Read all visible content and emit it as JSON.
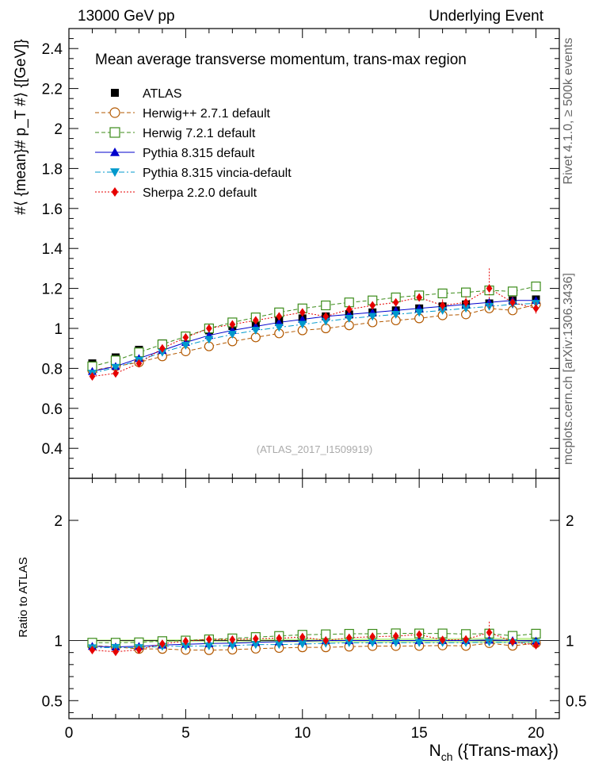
{
  "header": {
    "left": "13000 GeV pp",
    "right": "Underlying Event",
    "side_top": "Rivet 4.1.0, ≥ 500k events",
    "side_bottom": "mcplots.cern.ch [arXiv:1306.3436]"
  },
  "chart_data": [
    {
      "type": "scatter",
      "title": "Mean average transverse momentum, trans-max region",
      "xlabel": "N_ch ({Trans-max})",
      "ylabel": "#⟨ {mean}# p_T #⟩ {[GeV]}",
      "watermark": "(ATLAS_2017_I1509919)",
      "xlim": [
        0,
        21
      ],
      "ylim": [
        0.25,
        2.5
      ],
      "xticks": [
        "0",
        "5",
        "10",
        "15",
        "20"
      ],
      "yticks": [
        "0.4",
        "0.6",
        "0.8",
        "1",
        "1.2",
        "1.4",
        "1.6",
        "1.8",
        "2",
        "2.2",
        "2.4"
      ],
      "x": [
        1,
        2,
        3,
        4,
        5,
        6,
        7,
        8,
        9,
        10,
        11,
        12,
        13,
        14,
        15,
        16,
        17,
        18,
        19,
        20
      ],
      "series": [
        {
          "name": "ATLAS",
          "color": "#000000",
          "marker": "square-filled",
          "line": "none",
          "values": [
            0.825,
            0.855,
            0.893,
            0.925,
            0.96,
            0.99,
            1.012,
            1.025,
            1.04,
            1.05,
            1.06,
            1.07,
            1.08,
            1.09,
            1.1,
            1.11,
            1.12,
            1.125,
            1.14,
            1.145
          ]
        },
        {
          "name": "Herwig++ 2.7.1 default",
          "color": "#b35900",
          "marker": "circle-open",
          "line": "dashed",
          "values": [
            0.79,
            0.81,
            0.83,
            0.86,
            0.885,
            0.91,
            0.935,
            0.955,
            0.975,
            0.99,
            1.0,
            1.015,
            1.03,
            1.04,
            1.05,
            1.065,
            1.07,
            1.1,
            1.09,
            1.12
          ]
        },
        {
          "name": "Herwig 7.2.1 default",
          "color": "#3c8c1a",
          "marker": "square-open",
          "line": "dashed",
          "values": [
            0.81,
            0.84,
            0.88,
            0.92,
            0.96,
            1.0,
            1.03,
            1.055,
            1.08,
            1.1,
            1.115,
            1.13,
            1.14,
            1.155,
            1.165,
            1.175,
            1.18,
            1.19,
            1.185,
            1.21
          ]
        },
        {
          "name": "Pythia 8.315 default",
          "color": "#0000cc",
          "marker": "triangle-up",
          "line": "solid",
          "values": [
            0.785,
            0.81,
            0.85,
            0.89,
            0.93,
            0.965,
            0.99,
            1.01,
            1.03,
            1.045,
            1.06,
            1.07,
            1.08,
            1.09,
            1.1,
            1.11,
            1.12,
            1.13,
            1.14,
            1.14
          ]
        },
        {
          "name": "Pythia 8.315 vincia-default",
          "color": "#0099cc",
          "marker": "triangle-down",
          "line": "dashdot",
          "values": [
            0.775,
            0.805,
            0.84,
            0.88,
            0.915,
            0.945,
            0.97,
            0.99,
            1.005,
            1.02,
            1.035,
            1.05,
            1.06,
            1.07,
            1.08,
            1.09,
            1.1,
            1.11,
            1.12,
            1.125
          ]
        },
        {
          "name": "Sherpa 2.2.0 default",
          "color": "#e60000",
          "marker": "diamond",
          "line": "dotted",
          "values": [
            0.76,
            0.775,
            0.825,
            0.9,
            0.955,
            1.0,
            1.02,
            1.04,
            1.06,
            1.08,
            1.06,
            1.095,
            1.115,
            1.13,
            1.155,
            1.115,
            1.13,
            1.2,
            1.13,
            1.1
          ]
        }
      ]
    },
    {
      "type": "scatter",
      "title": "",
      "xlabel": "N_ch ({Trans-max})",
      "ylabel": "Ratio to ATLAS",
      "xlim": [
        0,
        21
      ],
      "ylim": [
        0.35,
        2.35
      ],
      "xticks": [
        "0",
        "5",
        "10",
        "15",
        "20"
      ],
      "yticks": [
        "0.5",
        "1",
        "2"
      ],
      "x": [
        1,
        2,
        3,
        4,
        5,
        6,
        7,
        8,
        9,
        10,
        11,
        12,
        13,
        14,
        15,
        16,
        17,
        18,
        19,
        20
      ],
      "series": [
        {
          "name": "Herwig++ 2.7.1 default",
          "values": [
            0.958,
            0.947,
            0.93,
            0.93,
            0.922,
            0.92,
            0.924,
            0.932,
            0.938,
            0.943,
            0.943,
            0.949,
            0.954,
            0.954,
            0.955,
            0.959,
            0.955,
            0.978,
            0.956,
            0.978
          ]
        },
        {
          "name": "Herwig 7.2.1 default",
          "values": [
            0.982,
            0.982,
            0.985,
            0.995,
            1.0,
            1.01,
            1.018,
            1.029,
            1.038,
            1.048,
            1.052,
            1.056,
            1.056,
            1.06,
            1.059,
            1.059,
            1.054,
            1.058,
            1.039,
            1.057
          ]
        },
        {
          "name": "Pythia 8.315 default",
          "values": [
            0.952,
            0.947,
            0.952,
            0.962,
            0.969,
            0.975,
            0.978,
            0.985,
            0.99,
            0.995,
            1.0,
            1.0,
            1.0,
            1.0,
            1.0,
            1.0,
            1.0,
            1.004,
            1.0,
            0.996
          ]
        },
        {
          "name": "Pythia 8.315 vincia-default",
          "values": [
            0.939,
            0.942,
            0.941,
            0.951,
            0.953,
            0.955,
            0.958,
            0.966,
            0.966,
            0.971,
            0.976,
            0.981,
            0.981,
            0.982,
            0.982,
            0.982,
            0.982,
            0.987,
            0.982,
            0.983
          ]
        },
        {
          "name": "Sherpa 2.2.0 default",
          "values": [
            0.921,
            0.906,
            0.924,
            0.973,
            0.995,
            1.01,
            1.008,
            1.015,
            1.019,
            1.029,
            1.0,
            1.023,
            1.032,
            1.037,
            1.05,
            1.005,
            1.009,
            1.067,
            0.991,
            0.961
          ]
        }
      ]
    }
  ]
}
